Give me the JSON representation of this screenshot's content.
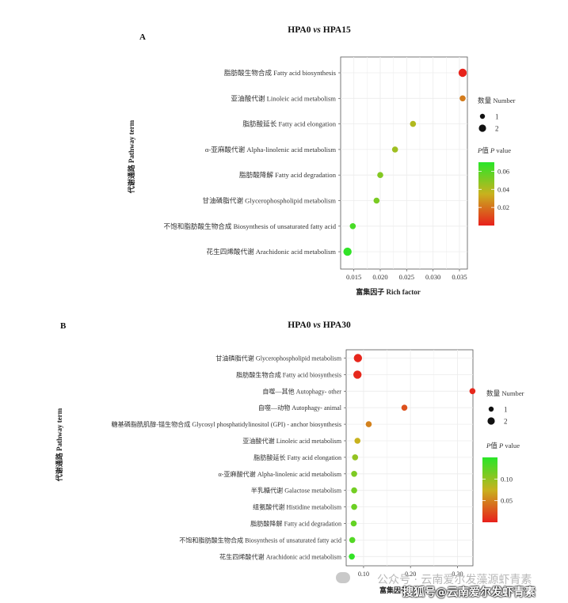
{
  "chart_data": [
    {
      "type": "scatter",
      "panel_label": "A",
      "title_parts": [
        "HPA0 ",
        "vs",
        " HPA15"
      ],
      "xlabel": "富集因子 Rich factor",
      "ylabel": "代谢通路 Pathway term",
      "xlim": [
        0.0125,
        0.0365
      ],
      "xticks": [
        0.015,
        0.02,
        0.025,
        0.03,
        0.035
      ],
      "xtick_labels": [
        "0.015",
        "0.020",
        "0.025",
        "0.030",
        "0.035"
      ],
      "grid": true,
      "categories": [
        "脂肪酸生物合成 Fatty acid biosynthesis",
        "亚油酸代谢 Linoleic acid metabolism",
        "脂肪酸延长 Fatty acid elongation",
        "α-亚麻酸代谢 Alpha-linolenic acid metabolism",
        "脂肪酸降解 Fatty acid degradation",
        "甘油磷脂代谢 Glycerophospholipid metabolism",
        "不饱和脂肪酸生物合成 Biosynthesis of unsaturated fatty acid",
        "花生四烯酸代谢 Arachidonic acid metabolism"
      ],
      "rich_factor": [
        0.0356,
        0.0356,
        0.0262,
        0.0228,
        0.02,
        0.0193,
        0.0148,
        0.0138
      ],
      "number": [
        2,
        1,
        1,
        1,
        1,
        1,
        1,
        2
      ],
      "p_value": [
        0.001,
        0.022,
        0.04,
        0.044,
        0.05,
        0.052,
        0.063,
        0.068
      ],
      "size_legend": {
        "title": "数量 Number",
        "values": [
          "1",
          "2"
        ]
      },
      "color_legend": {
        "title_parts": [
          "P",
          "值 ",
          "P",
          " value"
        ],
        "range": [
          0.0,
          0.07
        ],
        "ticks": [
          0.02,
          0.04,
          0.06
        ],
        "tick_labels": [
          "0.02",
          "0.04",
          "0.06"
        ]
      },
      "colors": {
        "low": "#e8201c",
        "mid": "#c8b21e",
        "high": "#28e628"
      },
      "legend_position": "right"
    },
    {
      "type": "scatter",
      "panel_label": "B",
      "title_parts": [
        "HPA0 ",
        "vs",
        " HPA30"
      ],
      "xlabel": "富集因子",
      "ylabel": "代谢通路 Pathway term",
      "xlim": [
        0.063,
        0.333
      ],
      "xticks": [
        0.1,
        0.2,
        0.3
      ],
      "xtick_labels": [
        "0.10",
        "0.20",
        "0.30"
      ],
      "grid": true,
      "categories": [
        "甘油磷脂代谢 Glycerophospholipid metabolism",
        "脂肪酸生物合成 Fatty acid biosynthesis",
        "自噬—其他 Autophagy- other",
        "自噬—动物 Autophagy- animal",
        "糖基磷脂酰肌醇-锚生物合成 Glycosyl phosphatidylinositol (GPI) - anchor biosynthesis",
        "亚油酸代谢 Linoleic acid metabolism",
        "脂肪酸延长 Fatty acid elongation",
        "α-亚麻酸代谢 Alpha-linolenic acid metabolism",
        "半乳糖代谢 Galactose metabolism",
        "组氨酸代谢 Histidine metabolism",
        "脂肪酸降解 Fatty acid degradation",
        "不饱和脂肪酸生物合成 Biosynthesis of unsaturated fatty acid",
        "花生四烯酸代谢 Arachidonic acid metabolism"
      ],
      "rich_factor": [
        0.088,
        0.087,
        0.332,
        0.187,
        0.111,
        0.087,
        0.082,
        0.08,
        0.08,
        0.08,
        0.079,
        0.076,
        0.075
      ],
      "number": [
        2,
        2,
        1,
        1,
        1,
        1,
        1,
        1,
        1,
        1,
        1,
        1,
        1
      ],
      "p_value": [
        0.003,
        0.004,
        0.004,
        0.025,
        0.05,
        0.075,
        0.1,
        0.11,
        0.115,
        0.118,
        0.122,
        0.13,
        0.145
      ],
      "size_legend": {
        "title": "数量 Number",
        "values": [
          "1",
          "2"
        ]
      },
      "color_legend": {
        "title_parts": [
          "P",
          "值 ",
          "P",
          " value"
        ],
        "range": [
          0.0,
          0.15
        ],
        "ticks": [
          0.05,
          0.1
        ],
        "tick_labels": [
          "0.05",
          "0.10"
        ]
      },
      "colors": {
        "low": "#e8201c",
        "mid": "#c8b21e",
        "high": "#28e628"
      },
      "legend_position": "right"
    }
  ],
  "watermark": {
    "faint_text": "公众号 · 云南爱尔发藻源虾青素",
    "bold_text": "搜狐号@云南爱尔发虾青素"
  }
}
